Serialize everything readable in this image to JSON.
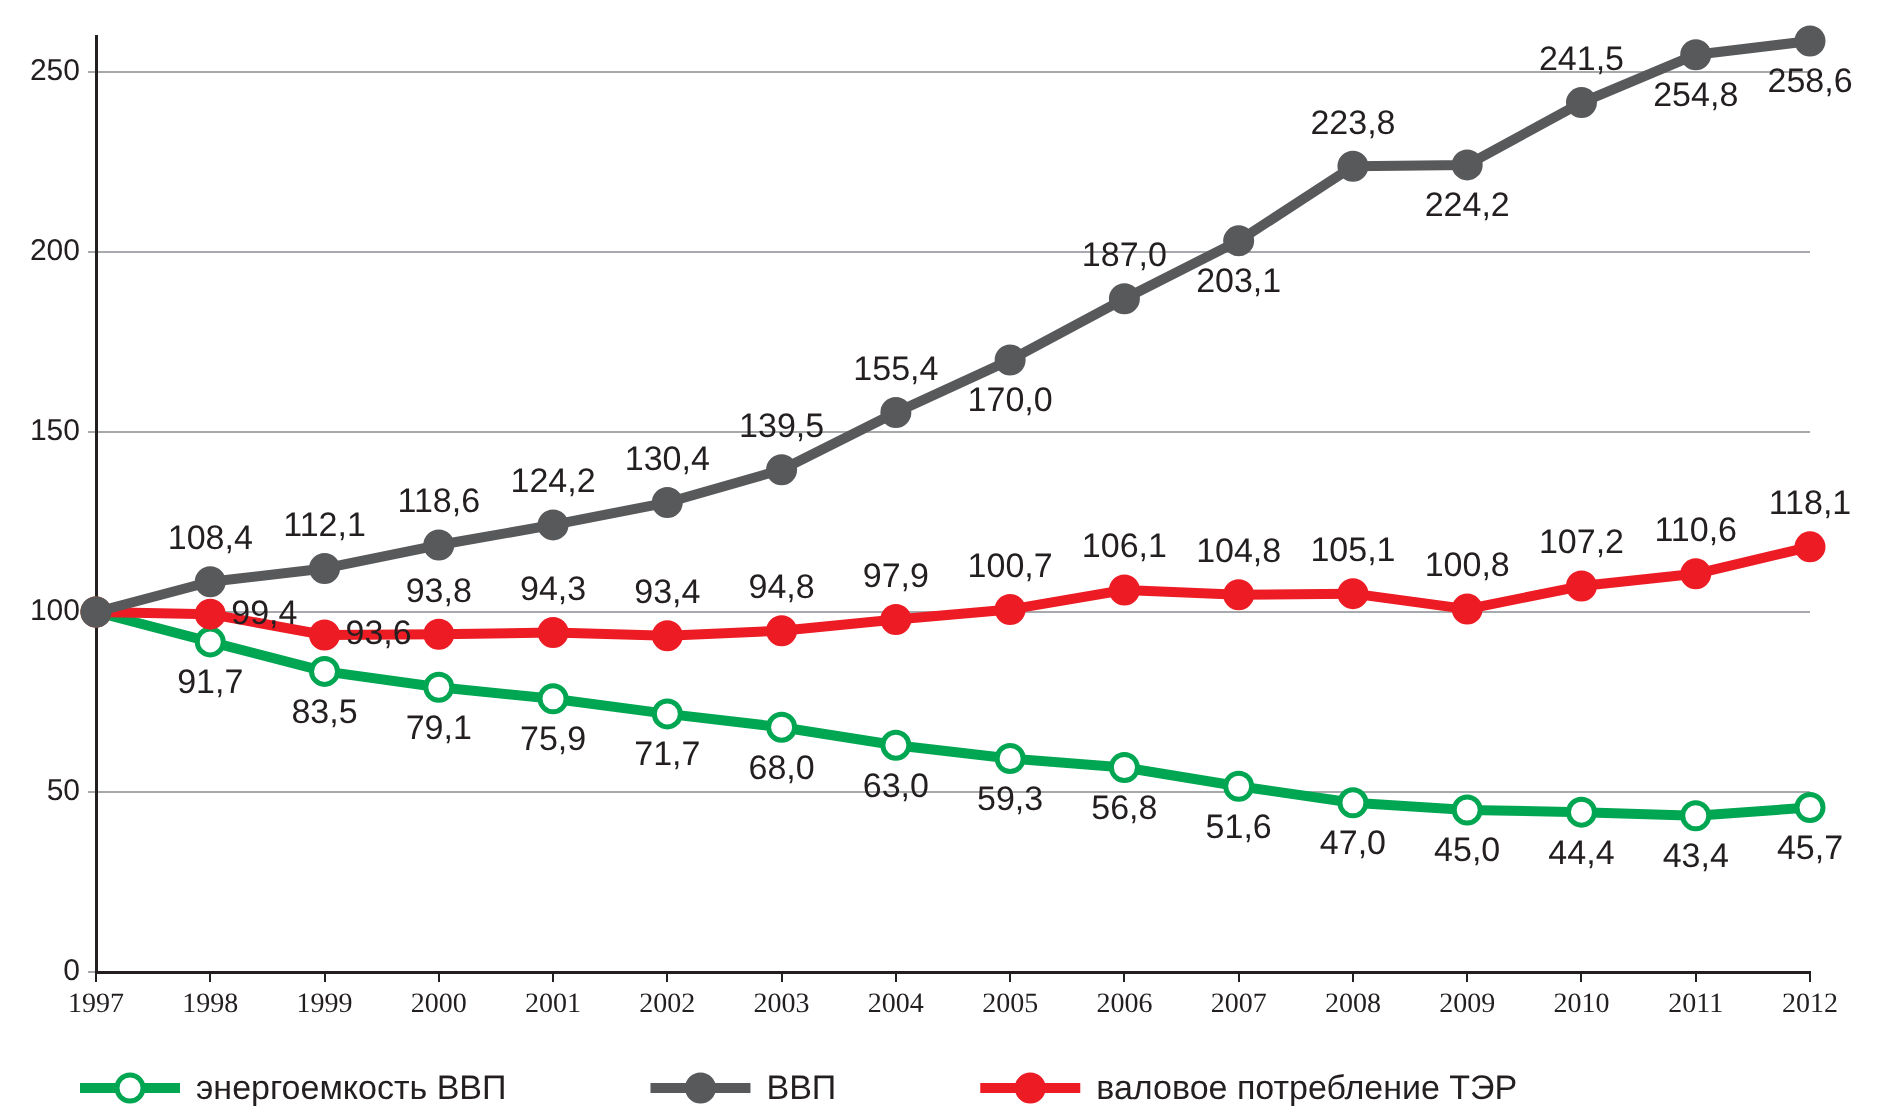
{
  "chart_data": {
    "type": "line",
    "x": [
      1997,
      1998,
      1999,
      2000,
      2001,
      2002,
      2003,
      2004,
      2005,
      2006,
      2007,
      2008,
      2009,
      2010,
      2011,
      2012
    ],
    "xlim": [
      1997,
      2012
    ],
    "xticks": [
      1997,
      1998,
      1999,
      2000,
      2001,
      2002,
      2003,
      2004,
      2005,
      2006,
      2007,
      2008,
      2009,
      2010,
      2011,
      2012
    ],
    "ylim": [
      0,
      260
    ],
    "yticks": [
      0,
      50,
      100,
      150,
      200,
      250
    ],
    "grid": "y",
    "legend": "bottom",
    "marker": "circle",
    "line_style": "solid",
    "series": [
      {
        "name": "энергоемкость ВВП",
        "color": "#00a651",
        "values": [
          100,
          91.7,
          83.5,
          79.1,
          75.9,
          71.7,
          68.0,
          63.0,
          59.3,
          56.8,
          51.6,
          47.0,
          45.0,
          44.4,
          43.4,
          45.7
        ],
        "value_labels": [
          null,
          "91,7",
          "83,5",
          "79,1",
          "75,9",
          "71,7",
          "68,0",
          "63,0",
          "59,3",
          "56,8",
          "51,6",
          "47,0",
          "45,0",
          "44,4",
          "43,4",
          "45,7"
        ]
      },
      {
        "name": "ВВП",
        "color": "#58595b",
        "values": [
          100,
          108.4,
          112.1,
          118.6,
          124.2,
          130.4,
          139.5,
          155.4,
          170.0,
          187.0,
          203.1,
          223.8,
          224.2,
          241.5,
          254.8,
          258.6
        ],
        "value_labels": [
          null,
          "108,4",
          "112,1",
          "118,6",
          "124,2",
          "130,4",
          "139,5",
          "155,4",
          "170,0",
          "187,0",
          "203,1",
          "223,8",
          "224,2",
          "241,5",
          "254,8",
          "258,6"
        ]
      },
      {
        "name": "валовое потребление ТЭР",
        "color": "#ed1c24",
        "values": [
          100,
          99.4,
          93.6,
          93.8,
          94.3,
          93.4,
          94.8,
          97.9,
          100.7,
          106.1,
          104.8,
          105.1,
          100.8,
          107.2,
          110.6,
          118.1
        ],
        "value_labels": [
          null,
          "99,4",
          "93,6",
          "93,8",
          "94,3",
          "93,4",
          "94,8",
          "97,9",
          "100,7",
          "106,1",
          "104,8",
          "105,1",
          "100,8",
          "107,2",
          "110,6",
          "118,1"
        ]
      }
    ]
  }
}
